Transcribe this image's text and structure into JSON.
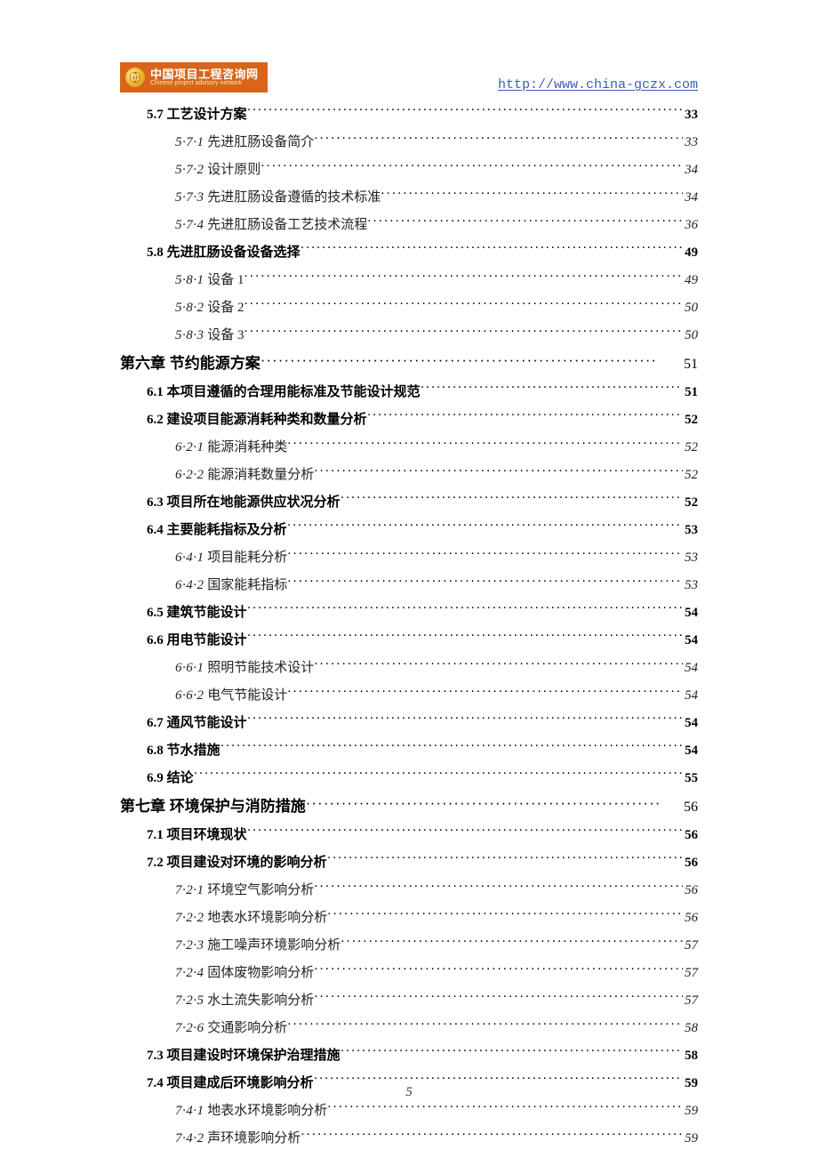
{
  "header": {
    "logo_cn": "中国项目工程咨询网",
    "logo_en": "Chinese project advisory network",
    "url": "http://www.china-gczx.com"
  },
  "colors": {
    "logo_bg": "#d8651a",
    "logo_text": "#ffffff",
    "logo_sub": "#fde9a8",
    "url": "#3b5fb5",
    "text": "#000000"
  },
  "toc": [
    {
      "level": "section",
      "bold": true,
      "label": "5.7 工艺设计方案",
      "page": "33"
    },
    {
      "level": "sub",
      "bold": false,
      "num": "5·7·1",
      "label": " 先进肛肠设备简介",
      "page": "33"
    },
    {
      "level": "sub",
      "bold": false,
      "num": "5·7·2",
      "label": " 设计原则",
      "page": "34"
    },
    {
      "level": "sub",
      "bold": false,
      "num": "5·7·3",
      "label": " 先进肛肠设备遵循的技术标准",
      "page": " 34"
    },
    {
      "level": "sub",
      "bold": false,
      "num": "5·7·4",
      "label": " 先进肛肠设备工艺技术流程",
      "page": "36"
    },
    {
      "level": "section",
      "bold": true,
      "label": "5.8 先进肛肠设备设备选择",
      "page": "49"
    },
    {
      "level": "sub",
      "bold": false,
      "num": "5·8·1",
      "label": " 设备 1",
      "page": " 49"
    },
    {
      "level": "sub",
      "bold": false,
      "num": "5·8·2",
      "label": " 设备 2",
      "page": " 50"
    },
    {
      "level": "sub",
      "bold": false,
      "num": "5·8·3",
      "label": " 设备 3",
      "page": " 50"
    },
    {
      "level": "chapter",
      "bold": true,
      "label": "第六章  节约能源方案",
      "page": "51"
    },
    {
      "level": "section",
      "bold": true,
      "label": "6.1 本项目遵循的合理用能标准及节能设计规范",
      "page": " 51"
    },
    {
      "level": "section",
      "bold": true,
      "label": "6.2 建设项目能源消耗种类和数量分析",
      "page": " 52"
    },
    {
      "level": "sub",
      "bold": false,
      "num": "6·2·1",
      "label": " 能源消耗种类",
      "page": "52"
    },
    {
      "level": "sub",
      "bold": false,
      "num": "6·2·2",
      "label": " 能源消耗数量分析",
      "page": "52"
    },
    {
      "level": "section",
      "bold": true,
      "label": "6.3 项目所在地能源供应状况分析",
      "page": "52"
    },
    {
      "level": "section",
      "bold": true,
      "label": "6.4 主要能耗指标及分析",
      "page": "53"
    },
    {
      "level": "sub",
      "bold": false,
      "num": "6·4·1",
      "label": " 项目能耗分析",
      "page": "53"
    },
    {
      "level": "sub",
      "bold": false,
      "num": "6·4·2",
      "label": " 国家能耗指标",
      "page": "53"
    },
    {
      "level": "section",
      "bold": true,
      "label": "6.5 建筑节能设计",
      "page": "54"
    },
    {
      "level": "section",
      "bold": true,
      "label": "6.6 用电节能设计",
      "page": "54"
    },
    {
      "level": "sub",
      "bold": false,
      "num": "6·6·1",
      "label": " 照明节能技术设计",
      "page": "54"
    },
    {
      "level": "sub",
      "bold": false,
      "num": "6·6·2",
      "label": " 电气节能设计",
      "page": "54"
    },
    {
      "level": "section",
      "bold": true,
      "label": "6.7 通风节能设计",
      "page": "54"
    },
    {
      "level": "section",
      "bold": true,
      "label": "6.8 节水措施",
      "page": "54"
    },
    {
      "level": "section",
      "bold": true,
      "label": "6.9 结论",
      "page": "55"
    },
    {
      "level": "chapter",
      "bold": true,
      "label": "第七章  环境保护与消防措施",
      "page": "56"
    },
    {
      "level": "section",
      "bold": true,
      "label": "7.1 项目环境现状",
      "page": "56"
    },
    {
      "level": "section",
      "bold": true,
      "label": "7.2 项目建设对环境的影响分析",
      "page": "56"
    },
    {
      "level": "sub",
      "bold": false,
      "num": "7·2·1",
      "label": " 环境空气影响分析",
      "page": "56"
    },
    {
      "level": "sub",
      "bold": false,
      "num": "7·2·2",
      "label": " 地表水环境影响分析",
      "page": "56"
    },
    {
      "level": "sub",
      "bold": false,
      "num": "7·2·3",
      "label": " 施工噪声环境影响分析",
      "page": " 57"
    },
    {
      "level": "sub",
      "bold": false,
      "num": "7·2·4",
      "label": " 固体废物影响分析",
      "page": " 57"
    },
    {
      "level": "sub",
      "bold": false,
      "num": "7·2·5",
      "label": " 水土流失影响分析",
      "page": " 57"
    },
    {
      "level": "sub",
      "bold": false,
      "num": "7·2·6",
      "label": " 交通影响分析",
      "page": "58"
    },
    {
      "level": "section",
      "bold": true,
      "label": "7.3 项目建设时环境保护治理措施",
      "page": "58"
    },
    {
      "level": "section",
      "bold": true,
      "label": "7.4 项目建成后环境影响分析",
      "page": "59"
    },
    {
      "level": "sub",
      "bold": false,
      "num": "7·4·1",
      "label": " 地表水环境影响分析",
      "page": " 59"
    },
    {
      "level": "sub",
      "bold": false,
      "num": "7·4·2",
      "label": " 声环境影响分析",
      "page": " 59"
    }
  ],
  "footer_page": "5"
}
